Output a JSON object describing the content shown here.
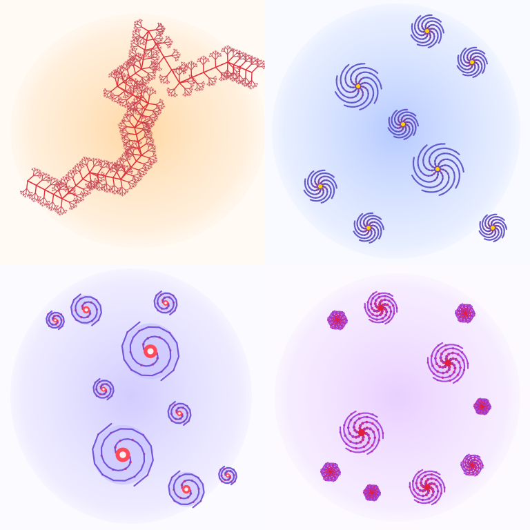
{
  "panels": [
    {
      "id": "dendrite",
      "colors": {
        "halo": "#ffd39a",
        "stroke": "#c84a5a",
        "core": "#e0303c"
      }
    },
    {
      "id": "star-spirals",
      "colors": {
        "halo": "#a9c1ff",
        "stroke": "#5a4fc8",
        "core": "#e0303c",
        "hub": "#ffd400"
      }
    },
    {
      "id": "double-spirals",
      "colors": {
        "halo": "#c9c4ff",
        "stroke": "#6b47d6",
        "core": "#ff4a5a",
        "bright": "#fff1f1"
      }
    },
    {
      "id": "curl-clusters",
      "colors": {
        "halo": "#e6c8ff",
        "stroke": "#a23ad8",
        "core": "#e0203c"
      }
    }
  ]
}
